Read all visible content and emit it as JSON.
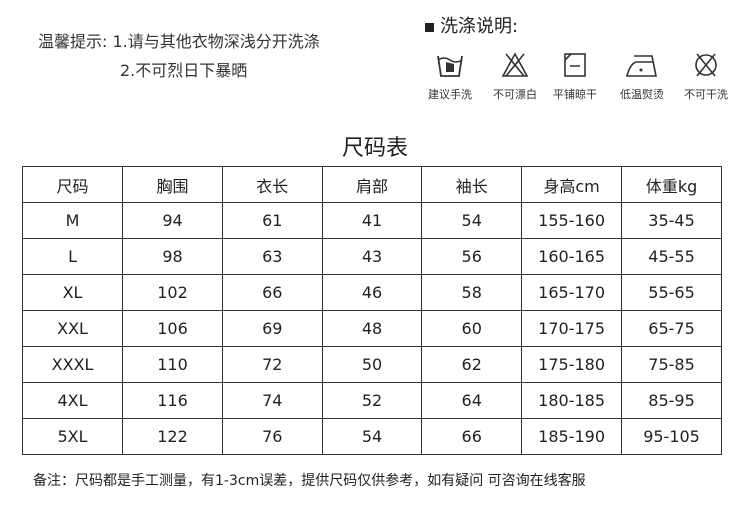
{
  "tips": {
    "line1": "温馨提示: 1.请与其他衣物深浅分开洗涤",
    "line2": "2.不可烈日下暴晒"
  },
  "washing": {
    "title": "洗涤说明:",
    "items": [
      {
        "icon": "hand-wash-icon",
        "label": "建议手洗"
      },
      {
        "icon": "no-bleach-icon",
        "label": "不可漂白"
      },
      {
        "icon": "dry-flat-icon",
        "label": "平铺晾干"
      },
      {
        "icon": "iron-low-icon",
        "label": "低温熨烫"
      },
      {
        "icon": "no-dry-clean-icon",
        "label": "不可干洗"
      }
    ]
  },
  "size_chart": {
    "title": "尺码表",
    "headers": [
      "尺码",
      "胸围",
      "衣长",
      "肩部",
      "袖长",
      "身高cm",
      "体重kg"
    ],
    "rows": [
      [
        "M",
        "94",
        "61",
        "41",
        "54",
        "155-160",
        "35-45"
      ],
      [
        "L",
        "98",
        "63",
        "43",
        "56",
        "160-165",
        "45-55"
      ],
      [
        "XL",
        "102",
        "66",
        "46",
        "58",
        "165-170",
        "55-65"
      ],
      [
        "XXL",
        "106",
        "69",
        "48",
        "60",
        "170-175",
        "65-75"
      ],
      [
        "XXXL",
        "110",
        "72",
        "50",
        "62",
        "175-180",
        "75-85"
      ],
      [
        "4XL",
        "116",
        "74",
        "52",
        "64",
        "180-185",
        "85-95"
      ],
      [
        "5XL",
        "122",
        "76",
        "54",
        "66",
        "185-190",
        "95-105"
      ]
    ]
  },
  "note": "备注：尺码都是手工测量，有1-3cm误差，提供尺码仅供参考，如有疑问 可咨询在线客服"
}
